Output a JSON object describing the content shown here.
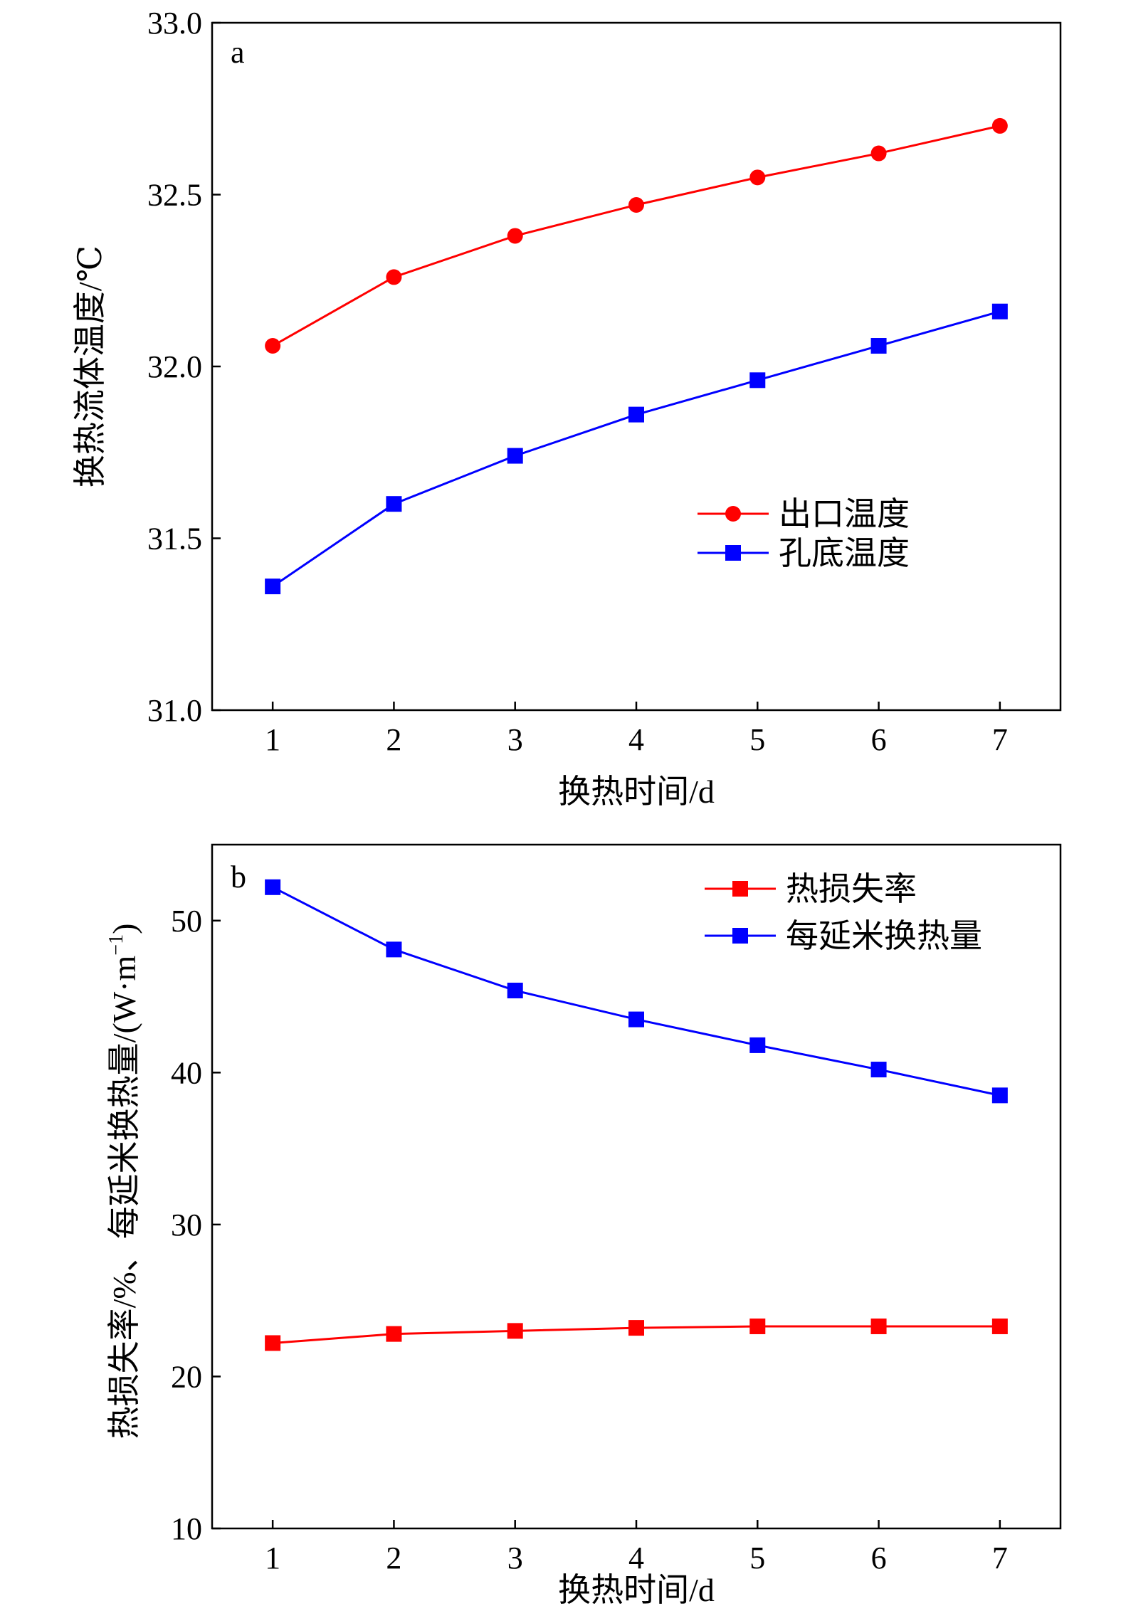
{
  "chart_data": [
    {
      "type": "line",
      "panel_label": "a",
      "x": [
        1,
        2,
        3,
        4,
        5,
        6,
        7
      ],
      "xlabel": "换热时间/d",
      "ylabel": "换热流体温度/℃",
      "xlim": [
        0.5,
        7.5
      ],
      "ylim": [
        31.0,
        33.0
      ],
      "yticks": [
        31.0,
        31.5,
        32.0,
        32.5,
        33.0
      ],
      "ytick_decimals": 1,
      "xticks": [
        1,
        2,
        3,
        4,
        5,
        6,
        7
      ],
      "legend_position": "center-right",
      "grid": false,
      "series": [
        {
          "name": "出口温度",
          "color": "#ff0000",
          "marker": "circle",
          "values": [
            32.06,
            32.26,
            32.38,
            32.47,
            32.55,
            32.62,
            32.7
          ]
        },
        {
          "name": "孔底温度",
          "color": "#0000ff",
          "marker": "square",
          "values": [
            31.36,
            31.6,
            31.74,
            31.86,
            31.96,
            32.06,
            32.16
          ]
        }
      ]
    },
    {
      "type": "line",
      "panel_label": "b",
      "x": [
        1,
        2,
        3,
        4,
        5,
        6,
        7
      ],
      "xlabel": "换热时间/d",
      "ylabel": "热损失率/%、每延米换热量/(W·m",
      "ylabel_superscript": "−1",
      "ylabel_suffix": ")",
      "xlim": [
        0.5,
        7.5
      ],
      "ylim": [
        10,
        55
      ],
      "yticks": [
        10,
        20,
        30,
        40,
        50
      ],
      "ytick_decimals": 0,
      "xticks": [
        1,
        2,
        3,
        4,
        5,
        6,
        7
      ],
      "legend_position": "top-right",
      "grid": false,
      "series": [
        {
          "name": "热损失率",
          "color": "#ff0000",
          "marker": "square",
          "values": [
            22.2,
            22.8,
            23.0,
            23.2,
            23.3,
            23.3,
            23.3
          ]
        },
        {
          "name": "每延米换热量",
          "color": "#0000ff",
          "marker": "square",
          "values": [
            52.2,
            48.1,
            45.4,
            43.5,
            41.8,
            40.2,
            38.5
          ]
        }
      ]
    }
  ]
}
